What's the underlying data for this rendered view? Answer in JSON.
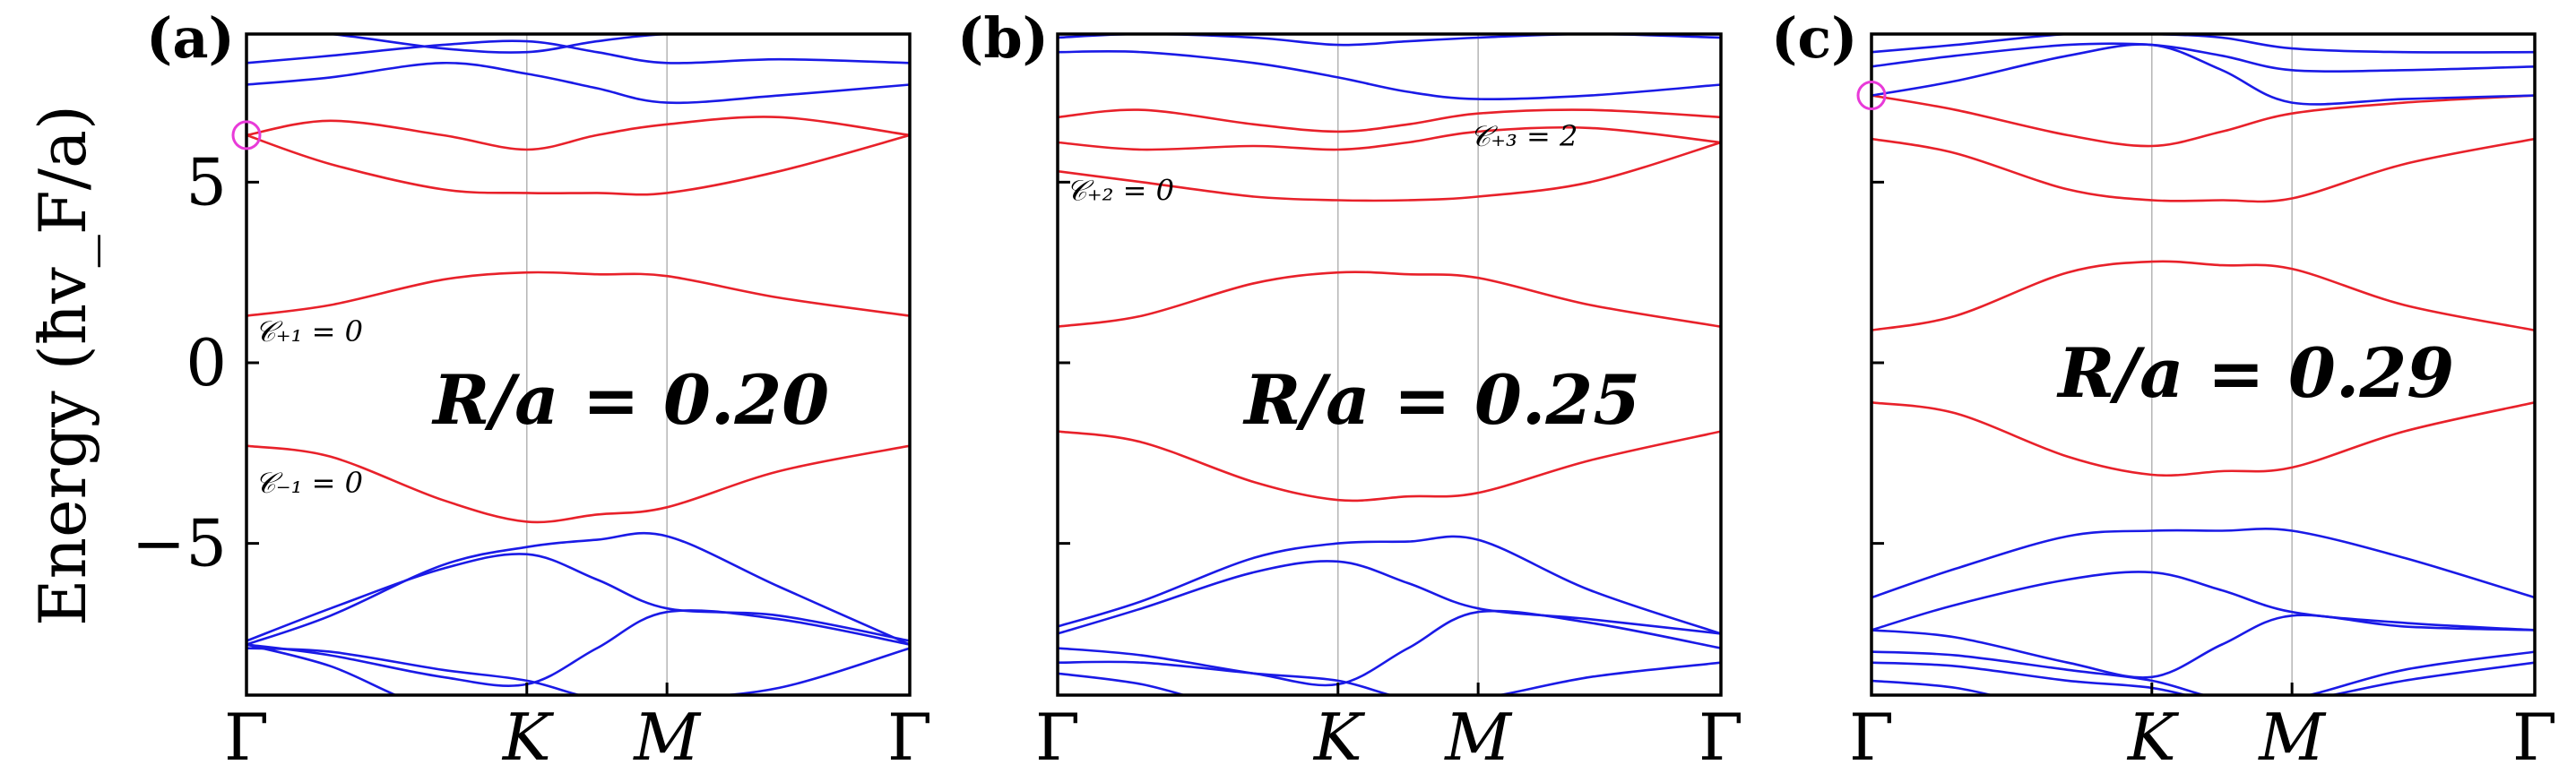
{
  "ylabel": "Energy (ħv_F/a)",
  "y_ticks": [
    {
      "value": 5,
      "label": "5"
    },
    {
      "value": 0,
      "label": "0"
    },
    {
      "value": -5,
      "label": "−5"
    }
  ],
  "k_points": [
    {
      "x": 0,
      "label": "Γ"
    },
    {
      "x": 1.0,
      "label": "K"
    },
    {
      "x": 1.5,
      "label": "M"
    },
    {
      "x": 2.366,
      "label": "Γ"
    }
  ],
  "chart_data": [
    {
      "type": "line",
      "panel": "(a)",
      "ratio_label": "R/a = 0.20",
      "ylim": [
        -9.2,
        9.1
      ],
      "xlim": [
        0,
        2.366
      ],
      "highlight": {
        "x": 0,
        "y": 6.3
      },
      "annotations": [
        {
          "text": "𝒞₊₁ = 0",
          "x": 0.03,
          "y": 0.6
        },
        {
          "text": "𝒞₋₁ = 0",
          "x": 0.03,
          "y": -3.6
        }
      ],
      "series": [
        {
          "color": "#e8212a",
          "x": [
            0,
            0.3,
            0.7,
            1.0,
            1.25,
            1.5,
            1.9,
            2.366
          ],
          "y": [
            6.3,
            6.7,
            6.3,
            5.9,
            6.3,
            6.6,
            6.8,
            6.3
          ]
        },
        {
          "color": "#e8212a",
          "x": [
            0,
            0.3,
            0.7,
            1.0,
            1.25,
            1.5,
            1.9,
            2.366
          ],
          "y": [
            6.3,
            5.5,
            4.8,
            4.7,
            4.7,
            4.7,
            5.3,
            6.3
          ]
        },
        {
          "color": "#e8212a",
          "x": [
            0,
            0.3,
            0.7,
            1.0,
            1.25,
            1.5,
            1.9,
            2.366
          ],
          "y": [
            1.3,
            1.6,
            2.3,
            2.5,
            2.45,
            2.4,
            1.8,
            1.3
          ]
        },
        {
          "color": "#e8212a",
          "x": [
            0,
            0.3,
            0.7,
            1.0,
            1.25,
            1.5,
            1.9,
            2.366
          ],
          "y": [
            -2.3,
            -2.6,
            -3.8,
            -4.4,
            -4.2,
            -4.0,
            -3.0,
            -2.3
          ]
        },
        {
          "color": "#1a1ae6",
          "x": [
            0,
            0.3,
            0.7,
            1.0,
            1.25,
            1.5,
            1.9,
            2.366
          ],
          "y": [
            8.3,
            8.5,
            8.8,
            8.9,
            8.6,
            8.3,
            8.4,
            8.3
          ]
        },
        {
          "color": "#1a1ae6",
          "x": [
            0,
            0.3,
            0.7,
            1.0,
            1.25,
            1.5,
            1.9,
            2.366
          ],
          "y": [
            7.7,
            7.9,
            8.3,
            8.0,
            7.6,
            7.2,
            7.4,
            7.7
          ]
        },
        {
          "color": "#1a1ae6",
          "x": [
            0,
            0.3,
            0.7,
            1.0,
            1.25,
            1.5,
            1.9,
            2.366
          ],
          "y": [
            9.2,
            9.1,
            8.7,
            8.6,
            8.9,
            9.1,
            9.2,
            9.2
          ]
        },
        {
          "color": "#1a1ae6",
          "x": [
            0,
            0.3,
            0.7,
            1.0,
            1.25,
            1.5,
            1.9,
            2.366
          ],
          "y": [
            -7.8,
            -7.0,
            -5.6,
            -5.1,
            -4.9,
            -4.8,
            -6.2,
            -7.8
          ]
        },
        {
          "color": "#1a1ae6",
          "x": [
            0,
            0.3,
            0.7,
            1.0,
            1.25,
            1.5,
            1.9,
            2.366
          ],
          "y": [
            -7.7,
            -6.8,
            -5.7,
            -5.3,
            -6.0,
            -6.8,
            -7.0,
            -7.7
          ]
        },
        {
          "color": "#1a1ae6",
          "x": [
            0,
            0.3,
            0.7,
            1.0,
            1.25,
            1.5,
            1.9,
            2.366
          ],
          "y": [
            -7.8,
            -8.1,
            -8.7,
            -8.9,
            -7.9,
            -6.9,
            -7.1,
            -7.8
          ]
        },
        {
          "color": "#1a1ae6",
          "x": [
            0,
            0.3,
            0.7,
            1.0,
            1.25,
            1.5,
            1.9,
            2.366
          ],
          "y": [
            -7.9,
            -8.0,
            -8.5,
            -8.8,
            -9.3,
            -9.3,
            -9.0,
            -7.9
          ]
        },
        {
          "color": "#1a1ae6",
          "x": [
            0,
            0.3,
            0.6,
            0.9
          ],
          "y": [
            -7.8,
            -8.4,
            -9.4,
            -9.9
          ]
        }
      ]
    },
    {
      "type": "line",
      "panel": "(b)",
      "ratio_label": "R/a = 0.25",
      "ylim": [
        -9.2,
        9.1
      ],
      "xlim": [
        0,
        2.366
      ],
      "annotations": [
        {
          "text": "𝒞₊₂ = 0",
          "x": 0.03,
          "y": 4.5
        },
        {
          "text": "𝒞₊₃ = 2",
          "x": 1.47,
          "y": 6.0
        }
      ],
      "series": [
        {
          "color": "#e8212a",
          "x": [
            0,
            0.3,
            0.7,
            1.0,
            1.25,
            1.5,
            1.9,
            2.366
          ],
          "y": [
            6.8,
            7.0,
            6.6,
            6.4,
            6.6,
            6.9,
            7.0,
            6.8
          ]
        },
        {
          "color": "#e8212a",
          "x": [
            0,
            0.3,
            0.7,
            1.0,
            1.25,
            1.5,
            1.9,
            2.366
          ],
          "y": [
            6.1,
            5.9,
            6.0,
            5.9,
            6.1,
            6.4,
            6.5,
            6.1
          ]
        },
        {
          "color": "#e8212a",
          "x": [
            0,
            0.3,
            0.7,
            1.0,
            1.25,
            1.5,
            1.9,
            2.366
          ],
          "y": [
            5.3,
            5.0,
            4.6,
            4.5,
            4.5,
            4.6,
            5.0,
            6.1
          ]
        },
        {
          "color": "#e8212a",
          "x": [
            0,
            0.3,
            0.7,
            1.0,
            1.25,
            1.5,
            1.9,
            2.366
          ],
          "y": [
            1.0,
            1.3,
            2.2,
            2.5,
            2.45,
            2.35,
            1.6,
            1.0
          ]
        },
        {
          "color": "#e8212a",
          "x": [
            0,
            0.3,
            0.7,
            1.0,
            1.25,
            1.5,
            1.9,
            2.366
          ],
          "y": [
            -1.9,
            -2.2,
            -3.3,
            -3.8,
            -3.7,
            -3.6,
            -2.7,
            -1.9
          ]
        },
        {
          "color": "#1a1ae6",
          "x": [
            0,
            0.3,
            0.7,
            1.0,
            1.25,
            1.5,
            1.9,
            2.366
          ],
          "y": [
            9.0,
            9.1,
            9.0,
            8.8,
            8.9,
            9.0,
            9.1,
            9.0
          ]
        },
        {
          "color": "#1a1ae6",
          "x": [
            0,
            0.3,
            0.7,
            1.0,
            1.25,
            1.5,
            1.9,
            2.366
          ],
          "y": [
            8.6,
            8.6,
            8.3,
            7.9,
            7.5,
            7.3,
            7.4,
            7.7
          ]
        },
        {
          "color": "#1a1ae6",
          "x": [
            0,
            0.3,
            0.7,
            1.0,
            1.25,
            1.5,
            1.9,
            2.366
          ],
          "y": [
            -7.3,
            -6.6,
            -5.4,
            -5.0,
            -4.95,
            -4.9,
            -6.3,
            -7.5
          ]
        },
        {
          "color": "#1a1ae6",
          "x": [
            0,
            0.3,
            0.7,
            1.0,
            1.25,
            1.5,
            1.9,
            2.366
          ],
          "y": [
            -7.5,
            -6.8,
            -5.8,
            -5.5,
            -6.1,
            -6.8,
            -7.1,
            -7.5
          ]
        },
        {
          "color": "#1a1ae6",
          "x": [
            0,
            0.3,
            0.7,
            1.0,
            1.25,
            1.5,
            1.9,
            2.366
          ],
          "y": [
            -7.9,
            -8.1,
            -8.6,
            -8.9,
            -7.9,
            -6.9,
            -7.2,
            -7.9
          ]
        },
        {
          "color": "#1a1ae6",
          "x": [
            0,
            0.3,
            0.7,
            1.0,
            1.25,
            1.5,
            1.9,
            2.366
          ],
          "y": [
            -8.3,
            -8.3,
            -8.6,
            -8.8,
            -9.3,
            -9.3,
            -8.7,
            -8.3
          ]
        },
        {
          "color": "#1a1ae6",
          "x": [
            0,
            0.3,
            0.6,
            0.9
          ],
          "y": [
            -8.6,
            -8.9,
            -9.5,
            -9.8
          ]
        }
      ]
    },
    {
      "type": "line",
      "panel": "(c)",
      "ratio_label": "R/a = 0.29",
      "ylim": [
        -9.2,
        9.1
      ],
      "xlim": [
        0,
        2.366
      ],
      "highlight": {
        "x": 0,
        "y": 7.4
      },
      "annotations": [],
      "series": [
        {
          "color": "#e8212a",
          "x": [
            0,
            0.3,
            0.7,
            1.0,
            1.25,
            1.5,
            1.9,
            2.366
          ],
          "y": [
            7.4,
            7.0,
            6.3,
            6.0,
            6.4,
            6.9,
            7.2,
            7.4
          ]
        },
        {
          "color": "#e8212a",
          "x": [
            0,
            0.3,
            0.7,
            1.0,
            1.25,
            1.5,
            1.9,
            2.366
          ],
          "y": [
            6.2,
            5.8,
            4.8,
            4.5,
            4.5,
            4.55,
            5.5,
            6.2
          ]
        },
        {
          "color": "#e8212a",
          "x": [
            0,
            0.3,
            0.7,
            1.0,
            1.25,
            1.5,
            1.9,
            2.366
          ],
          "y": [
            0.9,
            1.3,
            2.5,
            2.8,
            2.7,
            2.6,
            1.6,
            0.9
          ]
        },
        {
          "color": "#e8212a",
          "x": [
            0,
            0.3,
            0.7,
            1.0,
            1.25,
            1.5,
            1.9,
            2.366
          ],
          "y": [
            -1.1,
            -1.4,
            -2.6,
            -3.1,
            -3.0,
            -2.9,
            -1.9,
            -1.1
          ]
        },
        {
          "color": "#1a1ae6",
          "x": [
            0,
            0.3,
            0.7,
            1.0,
            1.25,
            1.5,
            1.9,
            2.366
          ],
          "y": [
            7.4,
            7.8,
            8.5,
            8.8,
            8.1,
            7.2,
            7.3,
            7.4
          ]
        },
        {
          "color": "#1a1ae6",
          "x": [
            0,
            0.3,
            0.7,
            1.0,
            1.25,
            1.5,
            1.9,
            2.366
          ],
          "y": [
            8.2,
            8.5,
            8.8,
            8.8,
            8.5,
            8.1,
            8.1,
            8.2
          ]
        },
        {
          "color": "#1a1ae6",
          "x": [
            0,
            0.3,
            0.7,
            1.0,
            1.25,
            1.5,
            1.9,
            2.366
          ],
          "y": [
            8.6,
            8.8,
            9.1,
            9.1,
            9.0,
            8.7,
            8.6,
            8.6
          ]
        },
        {
          "color": "#1a1ae6",
          "x": [
            0,
            0.3,
            0.7,
            1.0,
            1.25,
            1.5,
            1.9,
            2.366
          ],
          "y": [
            -6.5,
            -5.7,
            -4.8,
            -4.65,
            -4.65,
            -4.65,
            -5.4,
            -6.5
          ]
        },
        {
          "color": "#1a1ae6",
          "x": [
            0,
            0.3,
            0.7,
            1.0,
            1.25,
            1.5,
            1.9,
            2.366
          ],
          "y": [
            -7.4,
            -6.7,
            -6.0,
            -5.8,
            -6.3,
            -6.9,
            -7.2,
            -7.4
          ]
        },
        {
          "color": "#1a1ae6",
          "x": [
            0,
            0.3,
            0.7,
            1.0,
            1.25,
            1.5,
            1.9,
            2.366
          ],
          "y": [
            -7.4,
            -7.6,
            -8.3,
            -8.7,
            -7.8,
            -7.0,
            -7.3,
            -7.4
          ]
        },
        {
          "color": "#1a1ae6",
          "x": [
            0,
            0.3,
            0.7,
            1.0,
            1.25,
            1.5,
            1.9,
            2.366
          ],
          "y": [
            -8.0,
            -8.1,
            -8.5,
            -8.8,
            -9.3,
            -9.3,
            -8.5,
            -8.0
          ]
        },
        {
          "color": "#1a1ae6",
          "x": [
            0,
            0.3,
            0.7,
            1.0,
            1.25,
            1.5,
            1.9,
            2.366
          ],
          "y": [
            -8.3,
            -8.4,
            -8.8,
            -9.0,
            -9.4,
            -9.4,
            -8.8,
            -8.3
          ]
        },
        {
          "color": "#1a1ae6",
          "x": [
            0,
            0.3,
            0.6,
            0.9
          ],
          "y": [
            -8.8,
            -9.0,
            -9.5,
            -9.8
          ]
        }
      ]
    }
  ]
}
